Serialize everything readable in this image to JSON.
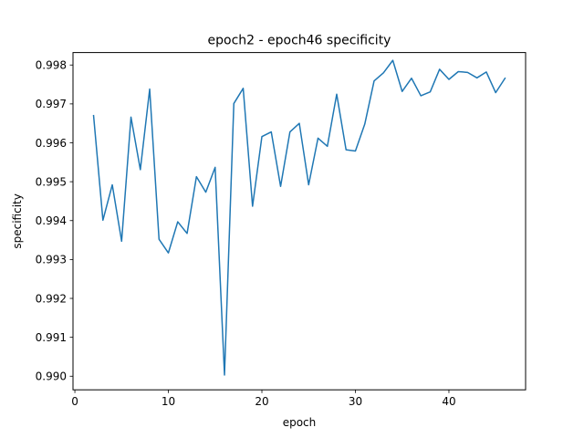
{
  "chart_data": {
    "type": "line",
    "title": "epoch2 - epoch46 specificity",
    "xlabel": "epoch",
    "ylabel": "specificity",
    "xlim": [
      -0.2,
      48.2
    ],
    "ylim": [
      0.98965,
      0.99832
    ],
    "xticks": [
      0,
      10,
      20,
      30,
      40
    ],
    "xtick_labels": [
      "0",
      "10",
      "20",
      "30",
      "40"
    ],
    "yticks": [
      0.99,
      0.991,
      0.992,
      0.993,
      0.994,
      0.995,
      0.996,
      0.997,
      0.998
    ],
    "ytick_labels": [
      "0.990",
      "0.991",
      "0.992",
      "0.993",
      "0.994",
      "0.995",
      "0.996",
      "0.997",
      "0.998"
    ],
    "grid": false,
    "series": [
      {
        "color": "#1f77b4",
        "x": [
          2,
          3,
          4,
          5,
          6,
          7,
          8,
          9,
          10,
          11,
          12,
          13,
          14,
          15,
          16,
          17,
          18,
          19,
          20,
          21,
          22,
          23,
          24,
          25,
          26,
          27,
          28,
          29,
          30,
          31,
          32,
          33,
          34,
          35,
          36,
          37,
          38,
          39,
          40,
          41,
          42,
          43,
          44,
          45,
          46
        ],
        "y": [
          0.9967,
          0.99401,
          0.99492,
          0.99347,
          0.99666,
          0.99531,
          0.99738,
          0.99352,
          0.99317,
          0.99397,
          0.99367,
          0.99513,
          0.99473,
          0.99537,
          0.99003,
          0.99701,
          0.9974,
          0.99437,
          0.99616,
          0.99628,
          0.99488,
          0.99628,
          0.9965,
          0.99492,
          0.99612,
          0.99591,
          0.99725,
          0.99582,
          0.99579,
          0.99648,
          0.99759,
          0.9978,
          0.99812,
          0.99732,
          0.99766,
          0.99721,
          0.99731,
          0.99789,
          0.99763,
          0.99783,
          0.99781,
          0.99767,
          0.99782,
          0.99729,
          0.99766
        ]
      }
    ]
  }
}
